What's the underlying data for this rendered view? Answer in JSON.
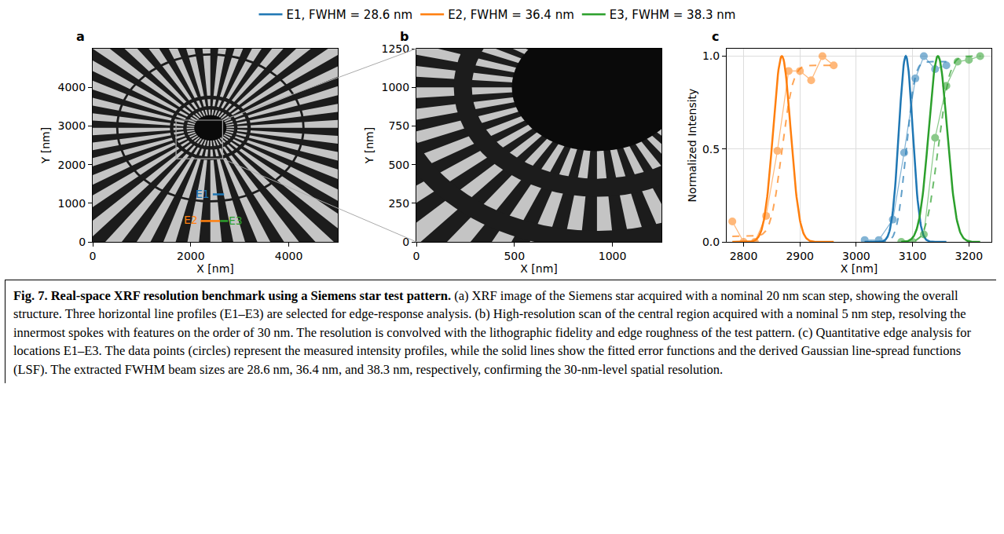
{
  "chart_data": [
    {
      "label": "a",
      "type": "image",
      "xlabel": "X [nm]",
      "ylabel": "Y [nm]",
      "xlim": [
        0,
        5000
      ],
      "ylim": [
        0,
        5000
      ],
      "xticks": [
        0,
        2000,
        4000
      ],
      "yticks": [
        0,
        1000,
        2000,
        3000,
        4000
      ],
      "profiles": [
        {
          "name": "E1",
          "color": "#1f77b4",
          "label_x": 2240,
          "label_y": 1230,
          "x": [
            2450,
            2680
          ],
          "y": 1230
        },
        {
          "name": "E2",
          "color": "#ff7f0e",
          "label_x": 2000,
          "label_y": 560,
          "x": [
            2200,
            2600
          ],
          "y": 540
        },
        {
          "name": "E3",
          "color": "#2ca02c",
          "label_x": 2920,
          "label_y": 540,
          "x": [
            2600,
            2760
          ],
          "y": 540
        }
      ],
      "zoom_box": {
        "x": [
          1700,
          2650
        ],
        "y": [
          2150,
          3150
        ]
      }
    },
    {
      "label": "b",
      "type": "image",
      "xlabel": "X [nm]",
      "ylabel": "Y [nm]",
      "xlim": [
        0,
        1250
      ],
      "ylim": [
        0,
        1250
      ],
      "xticks": [
        0,
        500,
        1000
      ],
      "yticks": [
        0,
        250,
        500,
        750,
        1000,
        1250
      ]
    },
    {
      "label": "c",
      "type": "line",
      "xlabel": "X [nm]",
      "ylabel": "Normalized Intensity",
      "xlim": [
        2770,
        3240
      ],
      "ylim": [
        0,
        1.04
      ],
      "xticks": [
        2800,
        2900,
        3000,
        3100,
        3200
      ],
      "yticks": [
        {
          "value": 0,
          "label": "0.0"
        },
        0.5,
        {
          "value": 1,
          "label": "1.0"
        }
      ],
      "grid": true,
      "legend": "top",
      "series": [
        {
          "name": "E1, FWHM = 28.6 nm",
          "color": "#1f77b4",
          "marker": "circle",
          "x": [
            3015,
            3040,
            3065,
            3085,
            3105,
            3120,
            3140,
            3160
          ],
          "values": [
            0.01,
            0.01,
            0.12,
            0.48,
            0.88,
            1.0,
            0.93,
            0.95
          ],
          "fwhm": 28.6,
          "center": 3088,
          "fit_low": 0.0,
          "fit_high": 0.97
        },
        {
          "name": "E2, FWHM = 36.4 nm",
          "color": "#ff7f0e",
          "marker": "circle",
          "x": [
            2780,
            2800,
            2820,
            2840,
            2860,
            2880,
            2900,
            2920,
            2940,
            2960
          ],
          "values": [
            0.11,
            0.0,
            0.0,
            0.14,
            0.49,
            0.92,
            0.92,
            0.87,
            1.0,
            0.95
          ],
          "fwhm": 36.4,
          "center": 2868,
          "fit_low": 0.03,
          "fit_high": 0.95
        },
        {
          "name": "E3, FWHM = 38.3 nm",
          "color": "#2ca02c",
          "marker": "circle",
          "x": [
            3080,
            3100,
            3120,
            3140,
            3160,
            3180,
            3200,
            3220
          ],
          "values": [
            0.0,
            0.0,
            0.04,
            0.56,
            0.84,
            0.97,
            0.98,
            1.0
          ],
          "fwhm": 38.3,
          "center": 3145,
          "fit_low": 0.0,
          "fit_high": 1.0
        }
      ]
    }
  ],
  "caption": {
    "title": "Fig. 7.  Real-space XRF resolution benchmark using a Siemens star test pattern.",
    "text": "(a) XRF image of the Siemens star acquired with a nominal 20 nm scan step, showing the overall structure. Three horizontal line profiles (E1–E3) are selected for edge-response analysis. (b) High-resolution scan of the central region acquired with a nominal 5 nm step, resolving the innermost spokes with features on the order of 30 nm. The resolution is convolved with the lithographic fidelity and edge roughness of the test pattern. (c) Quantitative edge analysis for locations E1–E3. The data points (circles) represent the measured intensity profiles, while the solid lines show the fitted error functions and the derived Gaussian line-spread functions (LSF). The extracted FWHM beam sizes are 28.6 nm, 36.4 nm, and 38.3 nm, respectively, confirming the 30-nm-level spatial resolution."
  }
}
